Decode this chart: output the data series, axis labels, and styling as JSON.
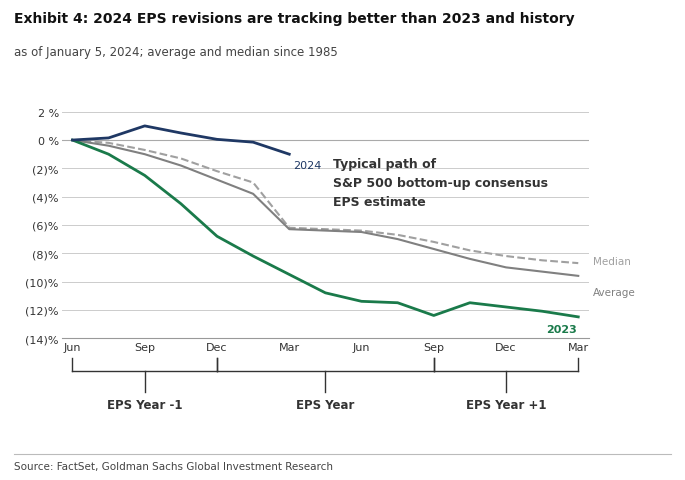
{
  "title": "Exhibit 4: 2024 EPS revisions are tracking better than 2023 and history",
  "subtitle": "as of January 5, 2024; average and median since 1985",
  "source": "Source: FactSet, Goldman Sachs Global Investment Research",
  "annotation": "Typical path of\nS&P 500 bottom-up consensus\nEPS estimate",
  "x_labels": [
    "Jun",
    "Sep",
    "Dec",
    "Mar",
    "Jun",
    "Sep",
    "Dec",
    "Mar"
  ],
  "x_group_labels": [
    "EPS Year -1",
    "EPS Year",
    "EPS Year +1"
  ],
  "ylim": [
    -14,
    3
  ],
  "yticks": [
    2,
    0,
    -2,
    -4,
    -6,
    -8,
    -10,
    -12,
    -14
  ],
  "ytick_labels": [
    "2 %",
    "0 %",
    "(2)%",
    "(4)%",
    "(6)%",
    "(8)%",
    "(10)%",
    "(12)%",
    "(14)%"
  ],
  "line_2024": {
    "x": [
      0,
      0.5,
      1.0,
      1.5,
      2.0,
      2.5,
      3.0
    ],
    "y": [
      0.0,
      0.15,
      1.0,
      0.5,
      0.05,
      -0.15,
      -1.0
    ],
    "color": "#1f3864",
    "label": "2024",
    "linewidth": 2.0
  },
  "line_2023": {
    "x": [
      0,
      0.5,
      1.0,
      1.5,
      2.0,
      2.5,
      3.0,
      3.5,
      4.0,
      4.5,
      5.0,
      5.5,
      6.0,
      6.5,
      7.0
    ],
    "y": [
      0.0,
      -1.0,
      -2.5,
      -4.5,
      -6.8,
      -8.2,
      -9.5,
      -10.8,
      -11.4,
      -11.5,
      -12.4,
      -11.5,
      -11.8,
      -12.1,
      -12.5
    ],
    "color": "#1a7a4a",
    "label": "2023",
    "linewidth": 2.0
  },
  "line_average": {
    "x": [
      0,
      0.5,
      1.0,
      1.5,
      2.0,
      2.5,
      3.0,
      3.5,
      4.0,
      4.5,
      5.0,
      5.5,
      6.0,
      6.5,
      7.0
    ],
    "y": [
      0.0,
      -0.4,
      -1.0,
      -1.8,
      -2.8,
      -3.8,
      -6.3,
      -6.4,
      -6.5,
      -7.0,
      -7.7,
      -8.4,
      -9.0,
      -9.3,
      -9.6
    ],
    "color": "#808080",
    "label": "Average",
    "linewidth": 1.5
  },
  "line_median": {
    "x": [
      0,
      0.5,
      1.0,
      1.5,
      2.0,
      2.5,
      3.0,
      3.5,
      4.0,
      4.5,
      5.0,
      5.5,
      6.0,
      6.5,
      7.0
    ],
    "y": [
      0.0,
      -0.2,
      -0.7,
      -1.3,
      -2.2,
      -3.0,
      -6.2,
      -6.3,
      -6.4,
      -6.7,
      -7.2,
      -7.8,
      -8.2,
      -8.5,
      -8.7
    ],
    "color": "#a0a0a0",
    "label": "Median",
    "linewidth": 1.5,
    "linestyle": "--"
  },
  "background_color": "#ffffff",
  "plot_bg_color": "#ffffff",
  "grid_color": "#cccccc",
  "title_fontsize": 10,
  "subtitle_fontsize": 8.5,
  "source_fontsize": 7.5,
  "tick_fontsize": 8,
  "label_fontsize": 8,
  "annotation_fontsize": 9
}
